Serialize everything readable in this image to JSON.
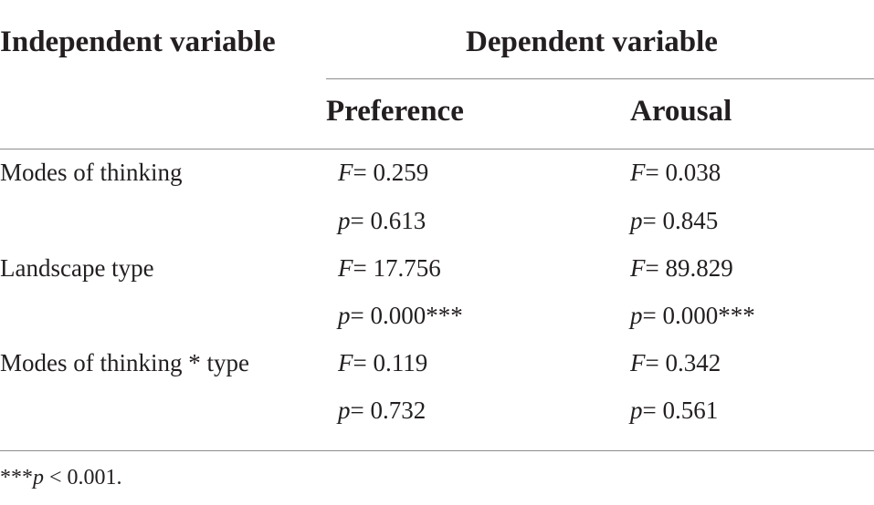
{
  "table": {
    "headers": {
      "independent": "Independent variable",
      "dependent": "Dependent variable",
      "preference": "Preference",
      "arousal": "Arousal"
    },
    "rows": [
      {
        "label": "Modes of thinking",
        "preference": {
          "F": "= 0.259",
          "p": "= 0.613"
        },
        "arousal": {
          "F": "= 0.038",
          "p": "= 0.845"
        }
      },
      {
        "label": "Landscape type",
        "preference": {
          "F": "= 17.756",
          "p": "= 0.000***"
        },
        "arousal": {
          "F": "= 89.829",
          "p": "= 0.000***"
        }
      },
      {
        "label": "Modes of thinking * type",
        "preference": {
          "F": "= 0.119",
          "p": "= 0.732"
        },
        "arousal": {
          "F": "= 0.342",
          "p": "= 0.561"
        }
      }
    ],
    "stat_symbols": {
      "F": "F",
      "p": "p"
    },
    "footnote": {
      "stars": "***",
      "symbol": "p",
      "text": " < 0.001."
    }
  }
}
